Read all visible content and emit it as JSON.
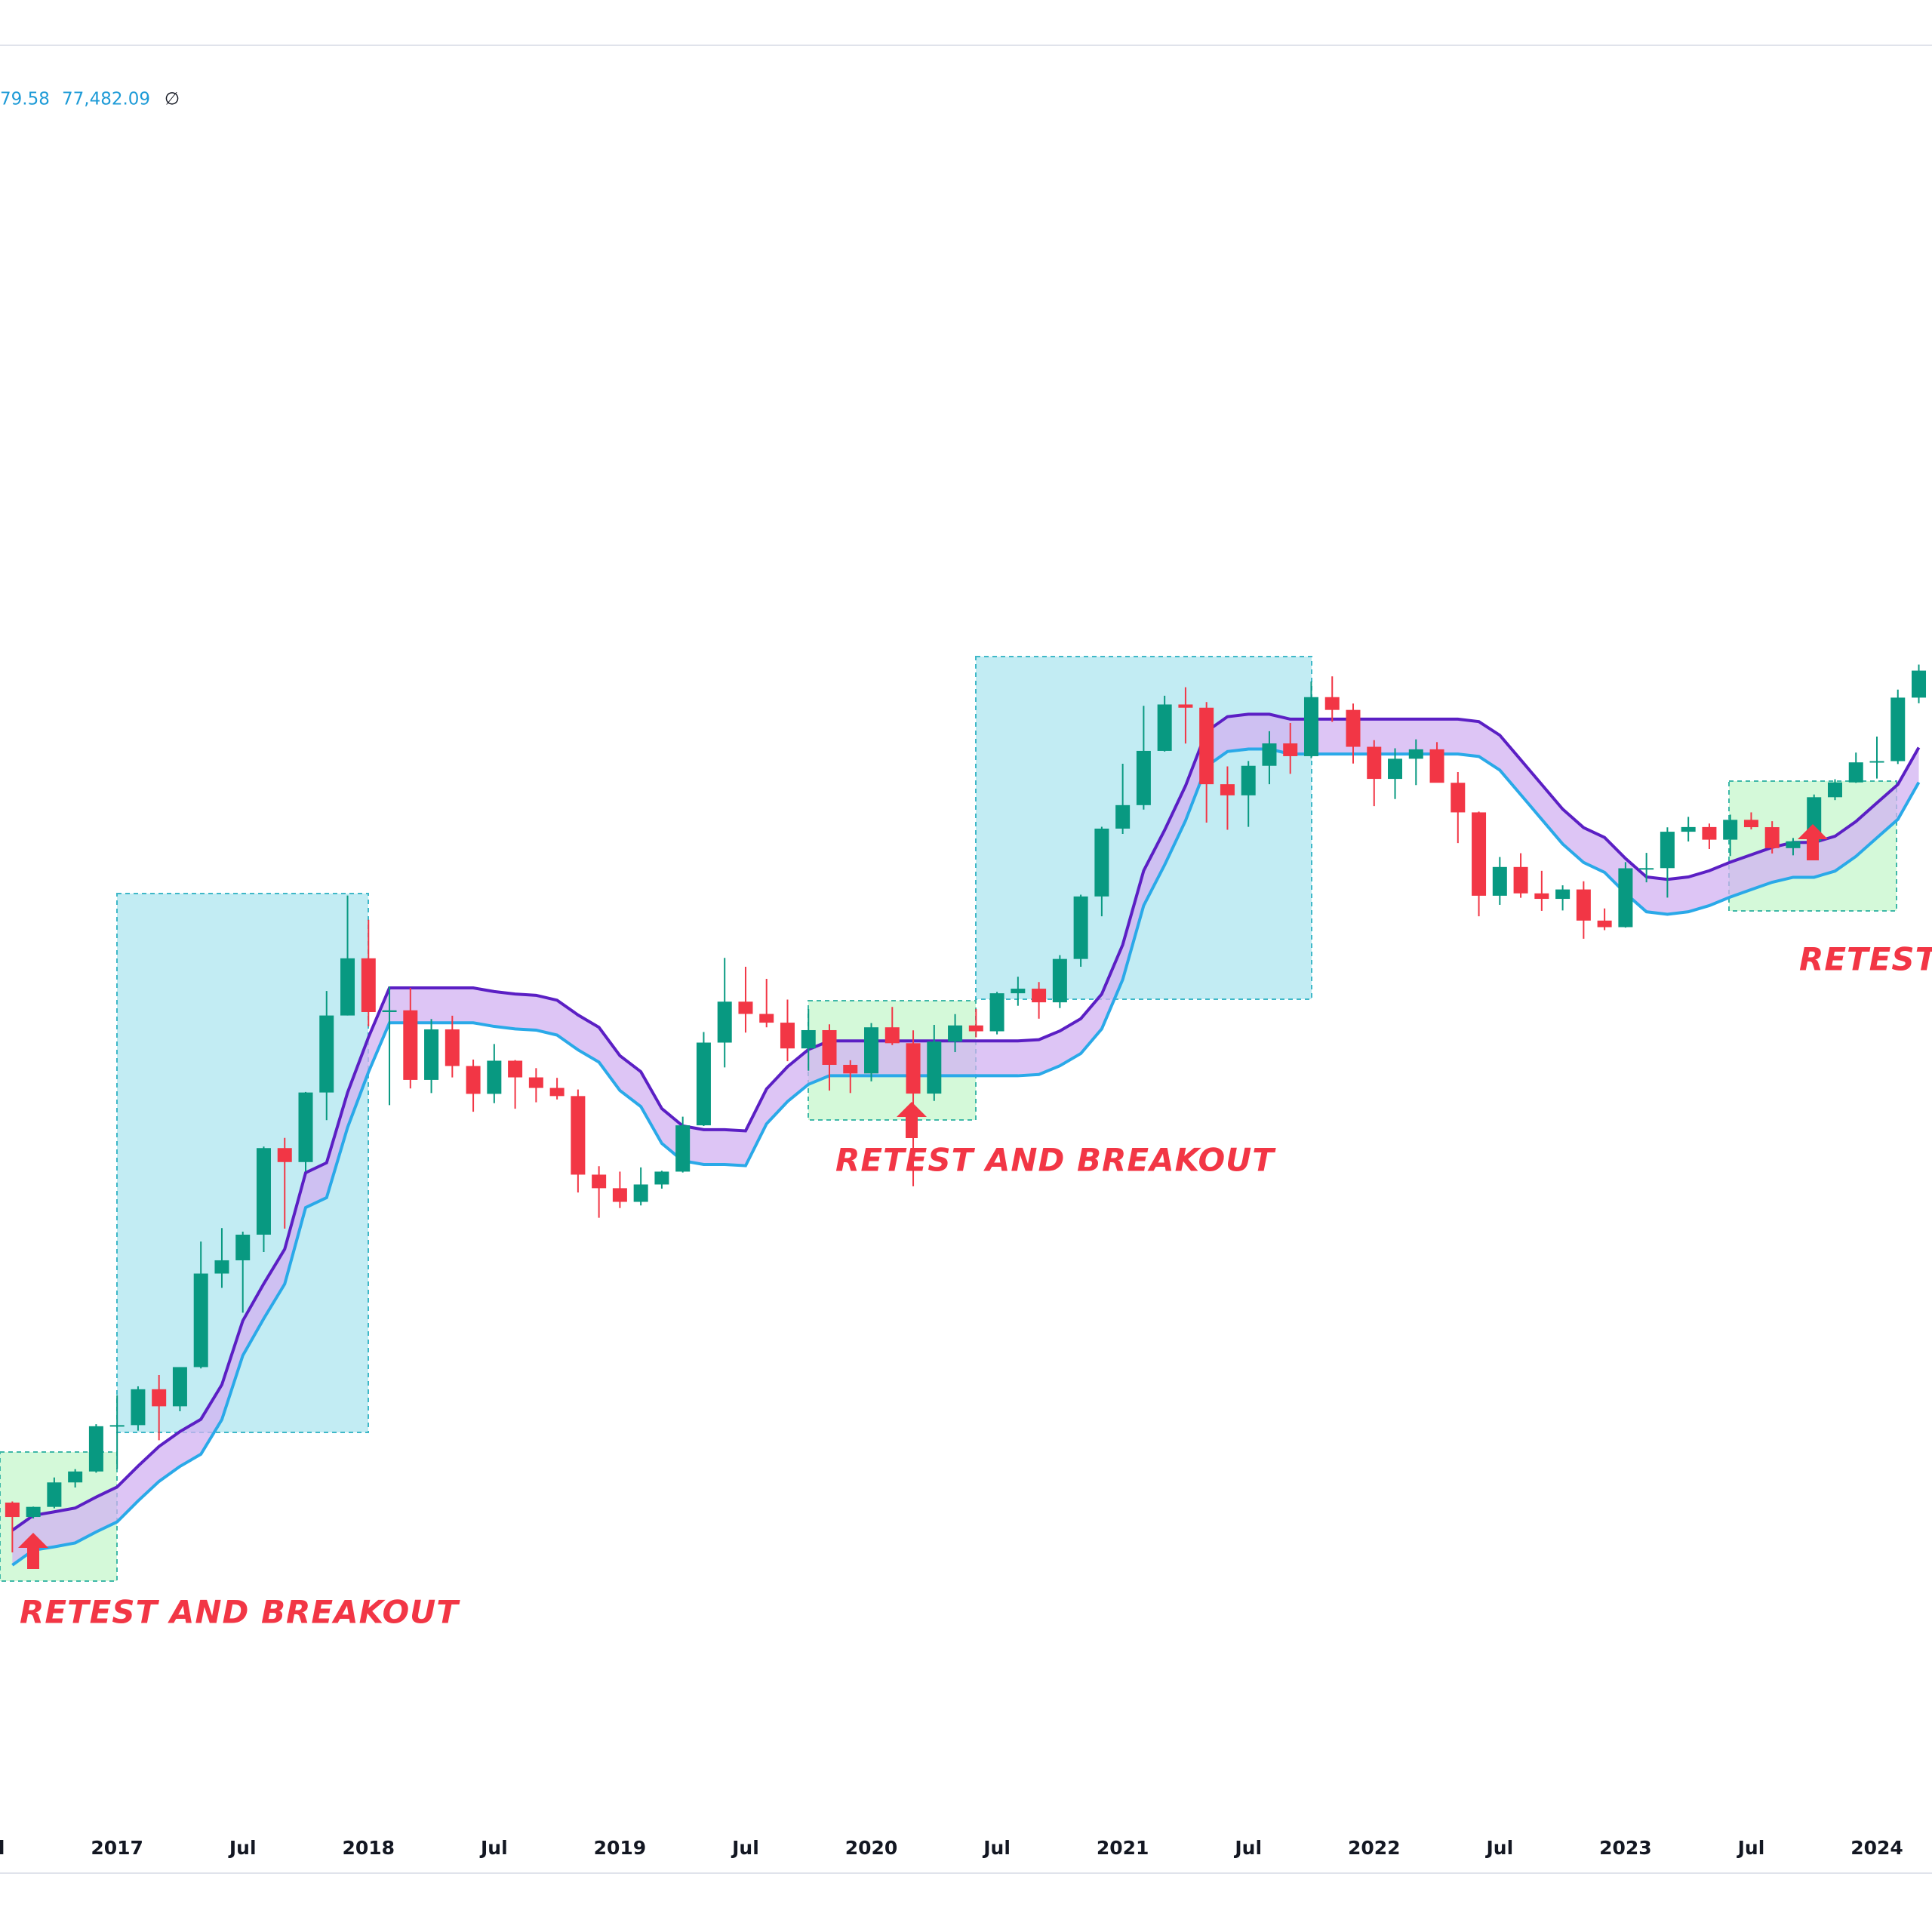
{
  "chart_data": {
    "type": "candlestick",
    "legend_values": [
      "79.58",
      "77,482.09"
    ],
    "legend_symbol": "∅",
    "annotations": [
      "RETEST AND BREAKOUT",
      "RETEST AND BREAKOUT",
      "RETEST AND BREAKOUT"
    ],
    "categories": [
      "Jul",
      null,
      null,
      null,
      null,
      null,
      "2017",
      null,
      null,
      null,
      null,
      null,
      "Jul",
      null,
      null,
      null,
      null,
      null,
      "2018",
      null,
      null,
      null,
      null,
      null,
      "Jul",
      null,
      null,
      null,
      null,
      null,
      "2019",
      null,
      null,
      null,
      null,
      null,
      "Jul",
      null,
      null,
      null,
      null,
      null,
      "2020",
      null,
      null,
      null,
      null,
      null,
      "Jul",
      null,
      null,
      null,
      null,
      null,
      "2021",
      null,
      null,
      null,
      null,
      null,
      "Jul",
      null,
      null,
      null,
      null,
      null,
      "2022",
      null,
      null,
      null,
      null,
      null,
      "Jul",
      null,
      null,
      null,
      null,
      null,
      "2023",
      null,
      null,
      null,
      null,
      null,
      "Jul",
      null,
      null,
      null,
      null,
      null,
      "2024",
      null,
      null
    ],
    "open": [
      null,
      624,
      575,
      609,
      700,
      745,
      964,
      970,
      1190,
      1080,
      1350,
      2300,
      2480,
      2870,
      4700,
      4340,
      6450,
      10000,
      13850,
      10200,
      10300,
      6930,
      9240,
      7500,
      6400,
      7730,
      7030,
      6620,
      6320,
      4040,
      3740,
      3460,
      3820,
      4110,
      5350,
      8570,
      10820,
      10090,
      9600,
      8290,
      9200,
      7550,
      7190,
      9350,
      8540,
      6410,
      8620,
      9450,
      9140,
      11350,
      11650,
      10780,
      13800,
      19700,
      28990,
      33140,
      45140,
      58790,
      57720,
      37330,
      35040,
      41460,
      47100,
      43800,
      61300,
      57000,
      46200,
      38480,
      43160,
      45540,
      37640,
      31800,
      19780,
      23300,
      20050,
      19430,
      20500,
      17170,
      16540,
      23130,
      23150,
      28480,
      29250,
      27220,
      30480,
      29230,
      25940,
      26970,
      34670,
      37720,
      42280,
      42580,
      61130
    ],
    "high": [
      null,
      628,
      610,
      720,
      755,
      975,
      1150,
      1210,
      1290,
      1350,
      2760,
      2980,
      2920,
      4740,
      4980,
      6470,
      11500,
      19800,
      17250,
      11800,
      11700,
      9800,
      9990,
      7780,
      8500,
      7760,
      7410,
      7010,
      6560,
      4240,
      4110,
      4210,
      4130,
      5620,
      9100,
      13880,
      13200,
      12320,
      10950,
      10370,
      9510,
      7750,
      9580,
      10500,
      9190,
      9480,
      10080,
      10380,
      11440,
      12470,
      12100,
      14100,
      19900,
      29300,
      41950,
      58350,
      61800,
      64850,
      59600,
      41330,
      42600,
      50500,
      52920,
      67000,
      69000,
      59100,
      47990,
      45820,
      48200,
      47450,
      40020,
      31950,
      24660,
      25200,
      22800,
      20990,
      21480,
      18400,
      23950,
      25250,
      29200,
      31000,
      29840,
      31390,
      31800,
      30240,
      27480,
      35200,
      38400,
      44700,
      48970,
      64000,
      73800
    ],
    "low": [
      null,
      470,
      570,
      604,
      680,
      740,
      755,
      940,
      890,
      1050,
      1340,
      2120,
      1840,
      2600,
      2970,
      4110,
      5510,
      10000,
      9400,
      6000,
      6600,
      6430,
      7030,
      5780,
      6070,
      5880,
      6100,
      6200,
      3650,
      3160,
      3340,
      3390,
      3730,
      4090,
      5330,
      7440,
      9070,
      9350,
      7710,
      7300,
      6520,
      6430,
      6870,
      8450,
      3780,
      6150,
      8120,
      8830,
      8980,
      10570,
      9820,
      10430,
      13200,
      17600,
      28130,
      32300,
      44950,
      47050,
      30000,
      28800,
      29280,
      37330,
      39600,
      43300,
      53250,
      42000,
      32950,
      34320,
      37150,
      37700,
      26700,
      17600,
      18780,
      19550,
      18150,
      18190,
      15480,
      16260,
      16500,
      21350,
      19570,
      26940,
      25810,
      24800,
      28860,
      25160,
      24900,
      26540,
      34100,
      37620,
      38560,
      41880,
      59200
    ],
    "close": [
      null,
      575,
      609,
      700,
      745,
      964,
      970,
      1190,
      1080,
      1350,
      2300,
      2480,
      2870,
      4700,
      4340,
      6450,
      10000,
      13850,
      10200,
      10300,
      6930,
      9240,
      7500,
      6400,
      7730,
      7030,
      6620,
      6320,
      4040,
      3740,
      3460,
      3820,
      4110,
      5350,
      8570,
      10820,
      10090,
      9600,
      8290,
      9200,
      7550,
      7190,
      9350,
      8540,
      6410,
      8620,
      9450,
      9140,
      11350,
      11650,
      10780,
      13800,
      19700,
      28990,
      33140,
      45140,
      58790,
      57720,
      37330,
      35040,
      41460,
      47100,
      43800,
      61300,
      57000,
      46200,
      38480,
      43160,
      45540,
      37640,
      31800,
      19780,
      23300,
      20050,
      19430,
      20500,
      17170,
      16540,
      23130,
      23150,
      28480,
      29250,
      27220,
      30480,
      29230,
      25940,
      26970,
      34670,
      37720,
      42280,
      42580,
      61130,
      71300
    ],
    "up_color": "#089981",
    "down_color": "#f23645",
    "bands": [
      {
        "color": "#5b1fc4",
        "values": [
          null,
          533,
          580,
          592,
          605,
          644,
          682,
          768,
          859,
          935,
          1003,
          1221,
          1758,
          2170,
          2643,
          4084,
          4322,
          6444,
          8838,
          11700,
          11700,
          11700,
          11700,
          11700,
          11461,
          11300,
          11219,
          10910,
          10030,
          9349,
          7956,
          7260,
          5885,
          5332,
          5219,
          5219,
          5184,
          6581,
          7470,
          8239,
          8653,
          8653,
          8653,
          8653,
          8653,
          8653,
          8653,
          8653,
          8653,
          8653,
          8715,
          9157,
          9820,
          11300,
          14962,
          22807,
          28742,
          37006,
          50408,
          54840,
          55617,
          55617,
          54075,
          54075,
          54075,
          54075,
          54075,
          54075,
          54075,
          54075,
          54075,
          53322,
          49340,
          42891,
          37270,
          32392,
          29152,
          27561,
          24458,
          22015,
          21707,
          22015,
          22807,
          23946,
          24977,
          26051,
          26794,
          26794,
          27753,
          30186,
          33561,
          37270,
          46012
        ]
      },
      {
        "color": "#2aa9e8",
        "values": [
          null,
          437,
          476,
          485,
          496,
          528,
          559,
          630,
          704,
          767,
          822,
          1001,
          1442,
          1779,
          2167,
          3349,
          3544,
          5284,
          7247,
          9594,
          9594,
          9594,
          9594,
          9594,
          9398,
          9266,
          9200,
          8946,
          8225,
          7666,
          6524,
          5953,
          4826,
          4372,
          4280,
          4280,
          4251,
          5396,
          6125,
          6756,
          7095,
          7095,
          7095,
          7095,
          7095,
          7095,
          7095,
          7095,
          7095,
          7095,
          7146,
          7509,
          8052,
          9266,
          12269,
          18702,
          23568,
          30345,
          41335,
          44969,
          45606,
          45606,
          44342,
          44342,
          44342,
          44342,
          44342,
          44342,
          44342,
          44342,
          44342,
          43724,
          40459,
          35171,
          30561,
          26561,
          23905,
          22600,
          20056,
          18052,
          17800,
          18052,
          18702,
          19636,
          20481,
          21362,
          21971,
          21971,
          22757,
          24753,
          27520,
          30561,
          37730
        ]
      }
    ],
    "band_fill": "#d2b2f2",
    "ylim": [
      100,
      2500000
    ],
    "log_scale": true
  }
}
